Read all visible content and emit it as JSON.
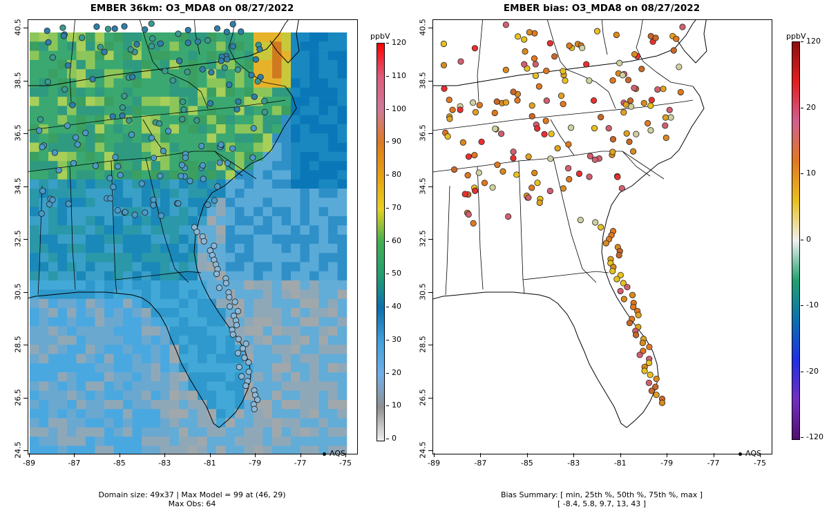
{
  "left_panel": {
    "title": "EMBER 36km: O3_MDA8 on 08/27/2022",
    "footer_line1": "Domain size: 49x37 | Max Model = 99 at (46, 29)",
    "footer_line2": "Max Obs: 64",
    "colorbar": {
      "unit": "ppbV",
      "labels": [
        "120",
        "110",
        "100",
        "90",
        "80",
        "70",
        "60",
        "50",
        "40",
        "30",
        "20",
        "10",
        "0"
      ],
      "stops": [
        "#ff0000",
        "#e05a7a",
        "#d07a9a",
        "#e07a20",
        "#e8a010",
        "#e8d020",
        "#40b050",
        "#20a070",
        "#0a70b0",
        "#40a0e0",
        "#70b0e8",
        "#909090",
        "#f0f0f0"
      ]
    },
    "legend": "AQS"
  },
  "right_panel": {
    "title": "EMBER bias: O3_MDA8 on 08/27/2022",
    "footer_line1": "Bias Summary: [ min, 25th %, 50th %, 75th %, max ]",
    "footer_line2": "[ -8.4,   5.8,   9.7,   13,   43 ]",
    "colorbar": {
      "unit": "ppbV",
      "labels": [
        "120",
        "20",
        "10",
        "0",
        "-10",
        "-20",
        "-120"
      ],
      "stops": [
        "#8b1010",
        "#e02020",
        "#d06090",
        "#e07820",
        "#e8c020",
        "#f0f0f0",
        "#20a070",
        "#0a70b0",
        "#2030e0",
        "#7030c0",
        "#501070"
      ]
    },
    "legend": "AQS"
  },
  "axes": {
    "x_ticks": [
      "-89",
      "-87",
      "-85",
      "-83",
      "-81",
      "-79",
      "-77",
      "-75"
    ],
    "y_ticks": [
      "40.5",
      "38.5",
      "36.5",
      "34.5",
      "32.5",
      "30.5",
      "28.5",
      "26.5",
      "24.5"
    ],
    "lon_range": [
      -89.2,
      -74.6
    ],
    "lat_range": [
      24.5,
      40.8
    ]
  },
  "chart_data": [
    {
      "type": "heatmap",
      "title": "EMBER 36km: O3_MDA8 on 08/27/2022",
      "unit": "ppbV",
      "grid_size": "49x37",
      "max_model": 99,
      "max_obs": 64
    },
    {
      "type": "scatter",
      "title": "EMBER bias: O3_MDA8 on 08/27/2022",
      "unit": "ppbV",
      "bias_summary": {
        "min": -8.4,
        "p25": 5.8,
        "p50": 9.7,
        "p75": 13,
        "max": 43
      }
    }
  ]
}
